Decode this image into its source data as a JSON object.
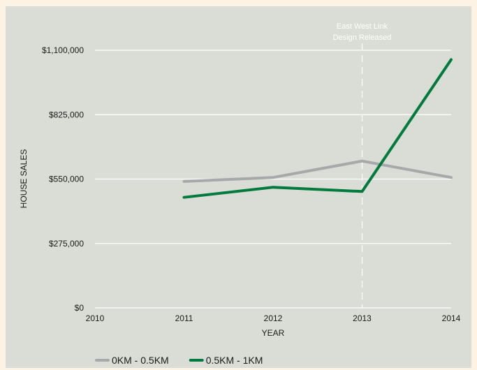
{
  "chart_data": {
    "type": "line",
    "xlabel": "YEAR",
    "ylabel": "HOUSE SALES",
    "x": [
      2010,
      2011,
      2012,
      2013,
      2014
    ],
    "xlim": [
      2010,
      2014
    ],
    "ylim": [
      0,
      1100000
    ],
    "y_ticks": [
      0,
      275000,
      550000,
      825000,
      1100000
    ],
    "y_tick_labels": [
      "$0",
      "$275,000",
      "$550,000",
      "$825,000",
      "$1,100,000"
    ],
    "x_tick_labels": [
      "2010",
      "2011",
      "2012",
      "2013",
      "2014"
    ],
    "grid": "horizontal",
    "legend_position": "bottom-left",
    "annotation": {
      "x": 2013,
      "lines": [
        "East West Link",
        "Design Released"
      ],
      "style": "dashed-vertical"
    },
    "series": [
      {
        "name": "0KM - 0.5KM",
        "color": "#a7a8aa",
        "x": [
          2011,
          2012,
          2013,
          2014
        ],
        "values": [
          540000,
          557000,
          627000,
          557000
        ]
      },
      {
        "name": "0.5KM - 1KM",
        "color": "#007a3d",
        "x": [
          2011,
          2012,
          2013,
          2014
        ],
        "values": [
          472000,
          515000,
          497000,
          1060000
        ]
      }
    ]
  }
}
